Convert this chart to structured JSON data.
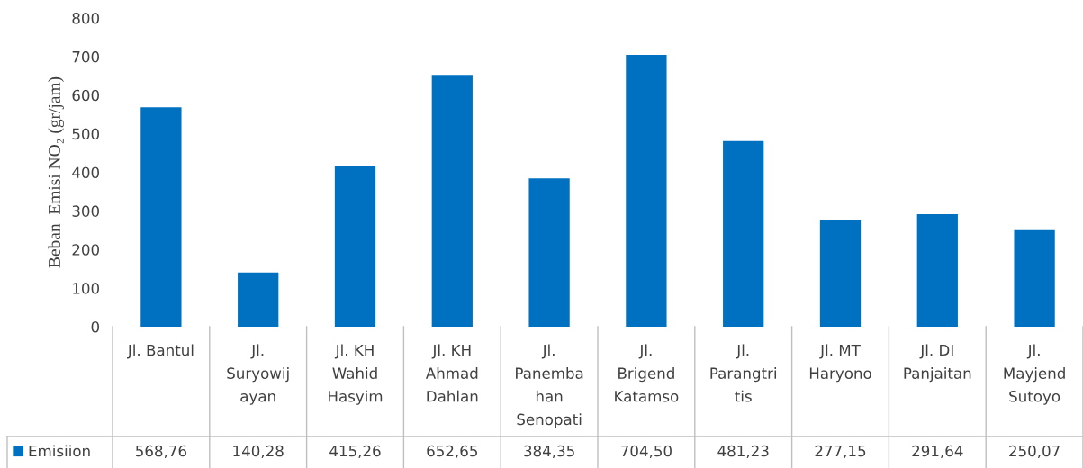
{
  "chart_data": {
    "type": "bar",
    "ylabel": "Beban  Emisi NO₂ (gr/jam)",
    "categories": [
      "Jl. Bantul",
      "Jl.\nSuryowij\nayan",
      "Jl. KH\nWahid\nHasyim",
      "Jl. KH\nAhmad\nDahlan",
      "Jl.\nPanemba\nhan\nSenopati",
      "Jl.\nBrigend\nKatamso",
      "Jl.\nParangtri\ntis",
      "Jl. MT\nHaryono",
      "Jl. DI\nPanjaitan",
      "Jl.\nMayjend\nSutoyo"
    ],
    "series": [
      {
        "name": "Emisiion",
        "color": "#0070c0",
        "values": [
          568.76,
          140.28,
          415.26,
          652.65,
          384.35,
          704.5,
          481.23,
          277.15,
          291.64,
          250.07
        ],
        "value_labels": [
          "568,76",
          "140,28",
          "415,26",
          "652,65",
          "384,35",
          "704,50",
          "481,23",
          "277,15",
          "291,64",
          "250,07"
        ]
      }
    ],
    "ylim": [
      0,
      800
    ],
    "yticks": [
      0,
      100,
      200,
      300,
      400,
      500,
      600,
      700,
      800
    ],
    "grid": false,
    "legend": "bottom",
    "data_labels": true
  }
}
